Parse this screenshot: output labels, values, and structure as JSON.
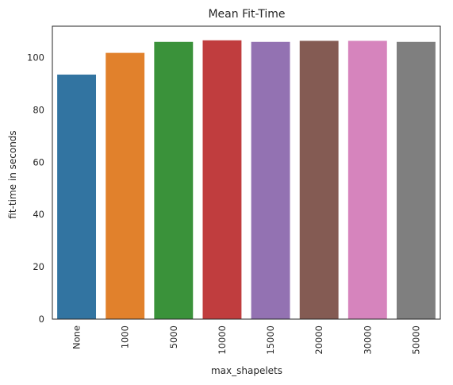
{
  "chart_data": {
    "type": "bar",
    "title": "Mean Fit-Time",
    "xlabel": "max_shapelets",
    "ylabel": "fit-time in seconds",
    "categories": [
      "None",
      "1000",
      "5000",
      "10000",
      "15000",
      "20000",
      "30000",
      "50000"
    ],
    "values": [
      93.5,
      101.8,
      106.0,
      106.6,
      106.0,
      106.4,
      106.4,
      106.0
    ],
    "colors": [
      "#3274a1",
      "#e1812c",
      "#3a923a",
      "#c03d3e",
      "#9372b2",
      "#845b53",
      "#d684bd",
      "#7f7f7f"
    ],
    "ylim": [
      0,
      112
    ],
    "yticks": [
      0,
      20,
      40,
      60,
      80,
      100
    ],
    "grid": false,
    "legend": "none"
  }
}
